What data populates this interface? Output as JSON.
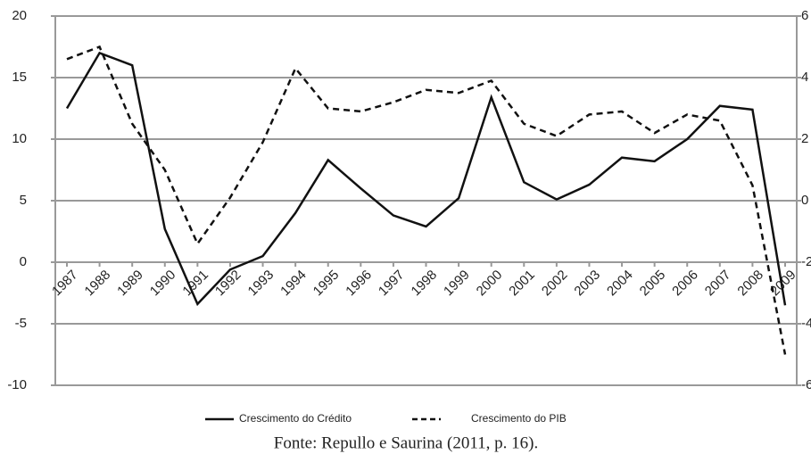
{
  "chart_data": {
    "type": "line",
    "categories": [
      "1987",
      "1988",
      "1989",
      "1990",
      "1991",
      "1992",
      "1993",
      "1994",
      "1995",
      "1996",
      "1997",
      "1998",
      "1999",
      "2000",
      "2001",
      "2002",
      "2003",
      "2004",
      "2005",
      "2006",
      "2007",
      "2008",
      "2009"
    ],
    "series": [
      {
        "name": "Crescimento do Crédito",
        "color": "#111111",
        "dash": "solid",
        "values": [
          12.5,
          17,
          16,
          2.7,
          -3.4,
          -0.6,
          0.5,
          4,
          8.3,
          6,
          3.8,
          2.9,
          5.2,
          13.4,
          6.5,
          5.1,
          6.3,
          8.5,
          8.2,
          10,
          12.7,
          12.4,
          -3.5
        ]
      },
      {
        "name": "Crescimento do PIB",
        "color": "#111111",
        "dash": "dashed",
        "axis": "y2",
        "values": [
          4.6,
          5.0,
          2.5,
          1.0,
          -1.4,
          0.1,
          1.9,
          4.3,
          3.0,
          2.9,
          3.2,
          3.6,
          3.5,
          3.9,
          2.5,
          2.1,
          2.8,
          2.9,
          2.2,
          2.8,
          2.6,
          0.5,
          -5.0
        ]
      }
    ],
    "ylim": [
      -10,
      20
    ],
    "yticks": [
      -10,
      -5,
      0,
      5,
      10,
      15,
      20
    ],
    "y2lim": [
      -6,
      6
    ],
    "y2ticks": [
      -6,
      -4,
      -2,
      0,
      2,
      4,
      6
    ],
    "grid": true,
    "source": "Fonte: Repullo e Saurina (2011, p. 16)."
  }
}
